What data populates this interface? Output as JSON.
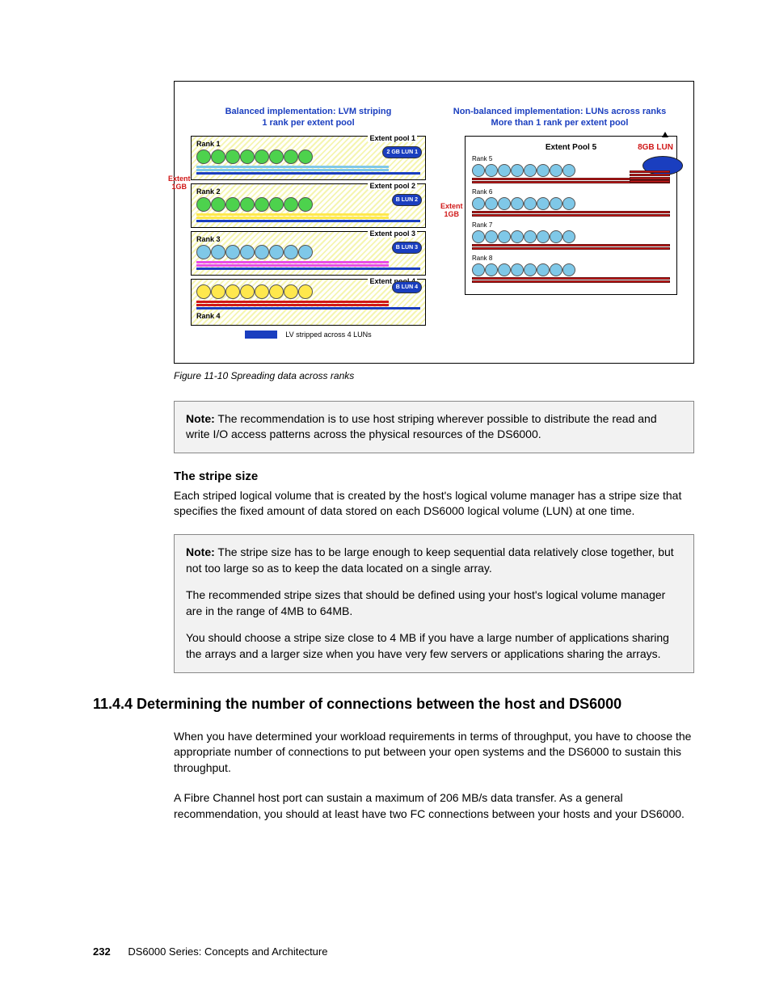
{
  "figure": {
    "caption": "Figure 11-10   Spreading data across ranks",
    "left_header_l1": "Balanced implementation: LVM striping",
    "left_header_l2": "1 rank per extent pool",
    "right_header_l1": "Non-balanced implementation:  LUNs across ranks",
    "right_header_l2": "More than 1 rank per extent pool",
    "extent_side_label_l1": "Extent",
    "extent_side_label_l2": "1GB",
    "right_extent_l1": "Extent",
    "right_extent_l2": "1GB",
    "pools": [
      {
        "rank": "Rank 1",
        "label": "Extent pool 1",
        "lun": "2 GB LUN 1",
        "circ_color": "c-green",
        "bar_colors": [
          "#7fc8e8",
          "#7fc8e8",
          "#1a3ebf"
        ]
      },
      {
        "rank": "Rank 2",
        "label": "Extent pool 2",
        "lun": "B LUN 2",
        "circ_color": "c-green",
        "bar_colors": [
          "#ffe84d",
          "#ffe84d",
          "#1a3ebf"
        ]
      },
      {
        "rank": "Rank 3",
        "label": "Extent pool 3",
        "lun": "B LUN 3",
        "circ_color": "c-blue",
        "bar_colors": [
          "#e84de8",
          "#e84de8",
          "#1a3ebf"
        ]
      },
      {
        "rank": "Rank 4",
        "label": "Extent pool 4",
        "lun": "B LUN 4",
        "circ_color": "c-yellow",
        "bar_colors": [
          "#d01818",
          "#d01818",
          "#1a3ebf"
        ]
      }
    ],
    "legend": "LV stripped across 4 LUNs",
    "right_title": "Extent  Pool 5",
    "right_lun_label": "8GB LUN",
    "right_ranks": [
      "Rank 5",
      "Rank 6",
      "Rank 7",
      "Rank 8"
    ]
  },
  "note1": {
    "label": "Note:",
    "text": " The recommendation is to use host striping wherever possible to distribute the read and write I/O access patterns across the physical resources of the DS6000."
  },
  "stripe_heading": "The stripe size",
  "stripe_para": "Each striped logical volume that is created by the host's logical volume manager has a stripe size that specifies the fixed amount of data stored on each DS6000 logical volume (LUN) at one time.",
  "note2": {
    "label": "Note:",
    "p1": " The stripe size has to be large enough to keep sequential data relatively close together, but not too large so as to keep the data located on a single array.",
    "p2": "The recommended stripe sizes that should be defined using your host's logical volume manager are in the range of 4MB to 64MB.",
    "p3": "You should choose a stripe size close to 4 MB if you have a large number of applications sharing the arrays and a larger size when you have very few servers or applications sharing the arrays."
  },
  "section_heading": "11.4.4  Determining the number of connections between the host and DS6000",
  "conn_p1": "When you have determined your workload requirements in terms of throughput, you have to choose the appropriate number of connections to put between your open systems and the DS6000 to sustain this throughput.",
  "conn_p2": "A Fibre Channel host port can sustain a maximum of 206 MB/s data transfer. As a general recommendation, you should at least have two FC connections between your hosts and your DS6000.",
  "footer": {
    "page": "232",
    "title": "DS6000 Series: Concepts and Architecture"
  }
}
